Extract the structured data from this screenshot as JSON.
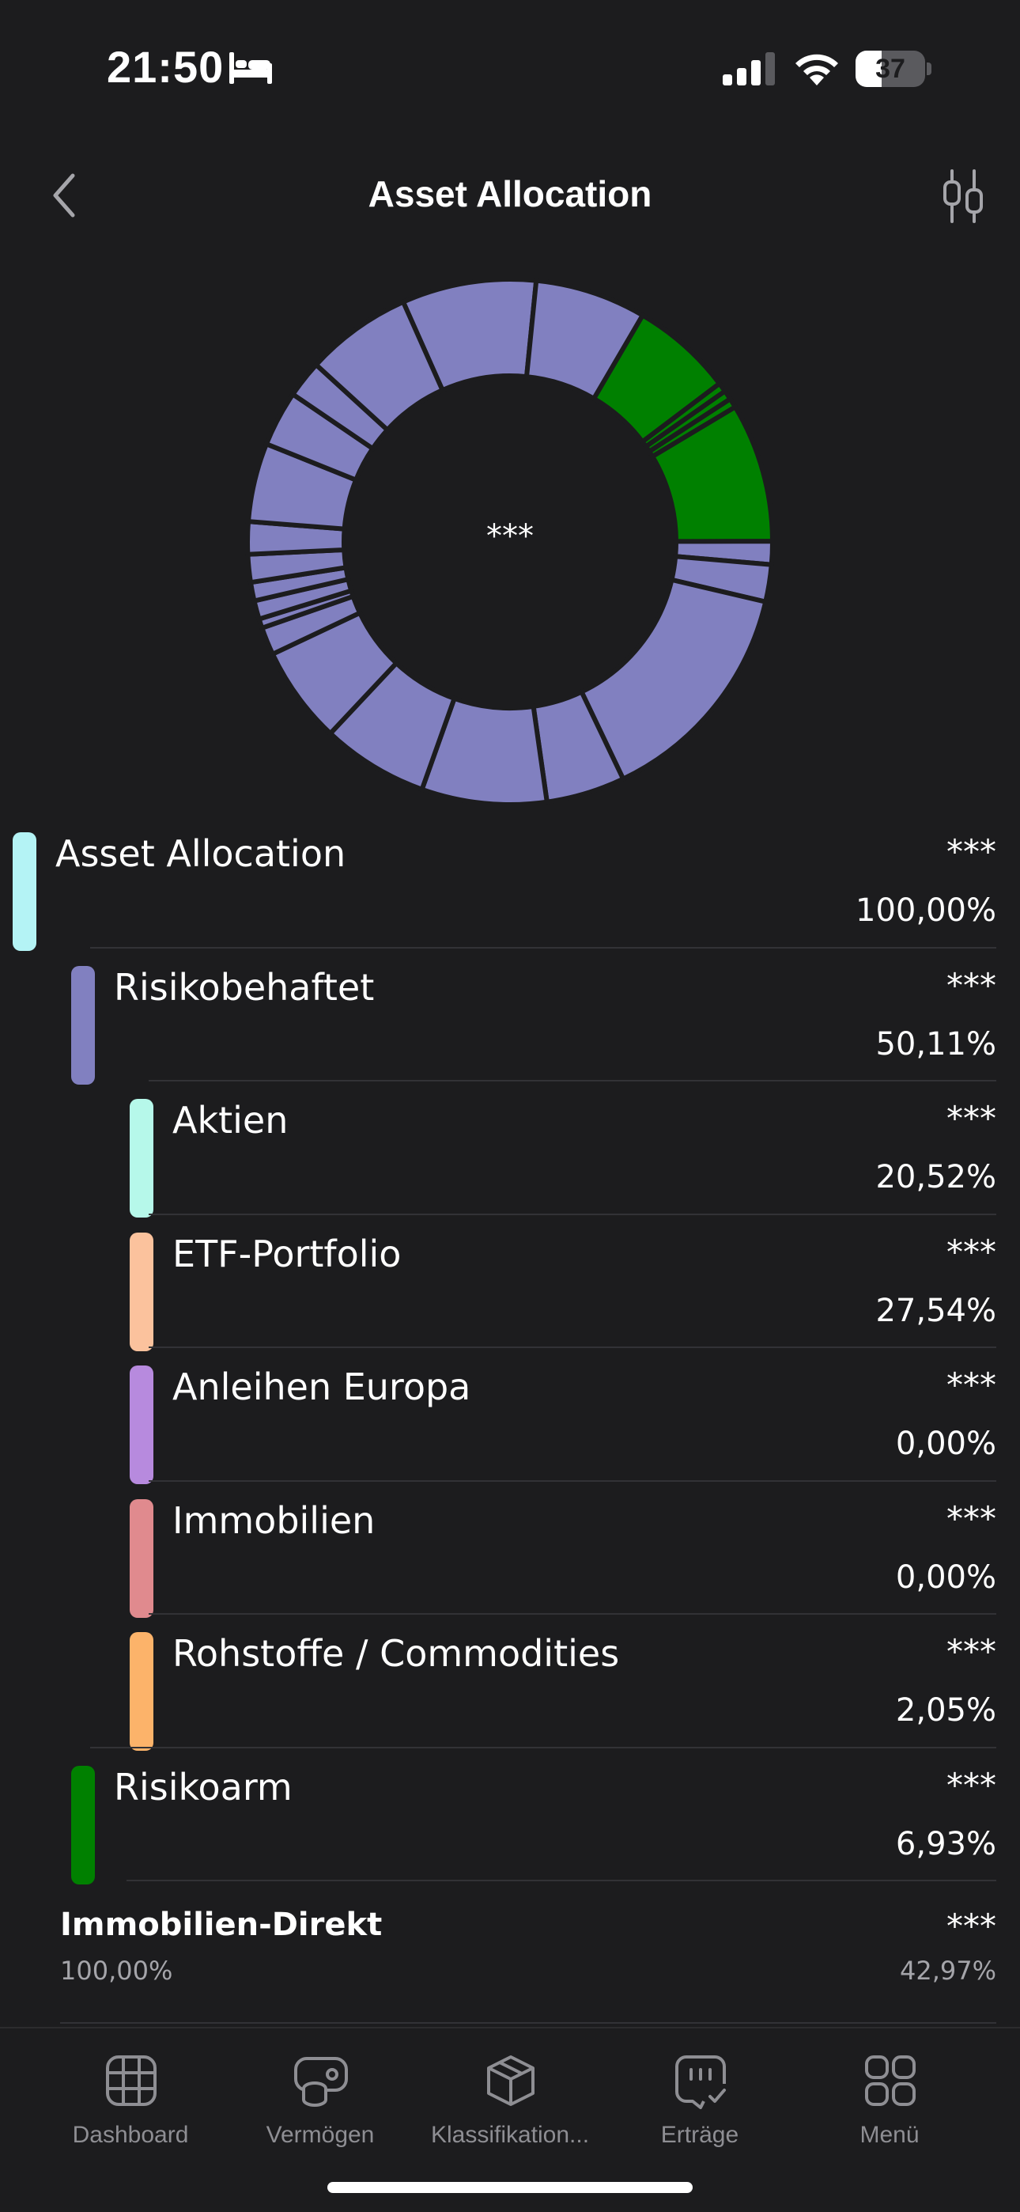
{
  "status_bar": {
    "time": "21:50",
    "battery": "37",
    "battery_level": 0.37,
    "icons": [
      "bed-icon",
      "signal-icon",
      "wifi-icon",
      "battery-icon"
    ]
  },
  "header": {
    "title": "Asset Allocation",
    "back_icon": "chevron-left-icon",
    "filter_icon": "sliders-icon"
  },
  "chart": {
    "center_label": "***",
    "colors": {
      "risky": "#8180c0",
      "safe": "#008000",
      "separator": "#1c1c1e"
    }
  },
  "chart_data": {
    "type": "pie",
    "categories": [
      "Risikobehaftet",
      "Risikoarm",
      "Immobilien-Direkt"
    ],
    "values": [
      50.11,
      6.93,
      42.97
    ],
    "unit": "%"
  },
  "allocation": {
    "items": [
      {
        "label": "Asset Allocation",
        "value": "***",
        "percent": "100,00%",
        "color": "#b4f3f5",
        "level": 0
      },
      {
        "label": "Risikobehaftet",
        "value": "***",
        "percent": "50,11%",
        "color": "#8180c0",
        "level": 1
      },
      {
        "label": "Aktien",
        "value": "***",
        "percent": "20,52%",
        "color": "#b6f8ea",
        "level": 2
      },
      {
        "label": "ETF-Portfolio",
        "value": "***",
        "percent": "27,54%",
        "color": "#fbc29d",
        "level": 2
      },
      {
        "label": "Anleihen Europa",
        "value": "***",
        "percent": "0,00%",
        "color": "#b78ade",
        "level": 2
      },
      {
        "label": "Immobilien",
        "value": "***",
        "percent": "0,00%",
        "color": "#e08a8e",
        "level": 2
      },
      {
        "label": "Rohstoffe / Commodities",
        "value": "***",
        "percent": "2,05%",
        "color": "#fcb36a",
        "level": 2
      },
      {
        "label": "Risikoarm",
        "value": "***",
        "percent": "6,93%",
        "color": "#008000",
        "level": 1
      }
    ]
  },
  "direkt": {
    "title": "Immobilien-Direkt",
    "subtitle": "100,00%",
    "value": "***",
    "percent": "42,97%"
  },
  "tabs": [
    {
      "label": "Dashboard",
      "icon": "grid-icon"
    },
    {
      "label": "Vermögen",
      "icon": "coins-icon"
    },
    {
      "label": "Klassifikation...",
      "icon": "box-icon"
    },
    {
      "label": "Erträge",
      "icon": "income-icon"
    },
    {
      "label": "Menü",
      "icon": "menu-icon"
    }
  ]
}
